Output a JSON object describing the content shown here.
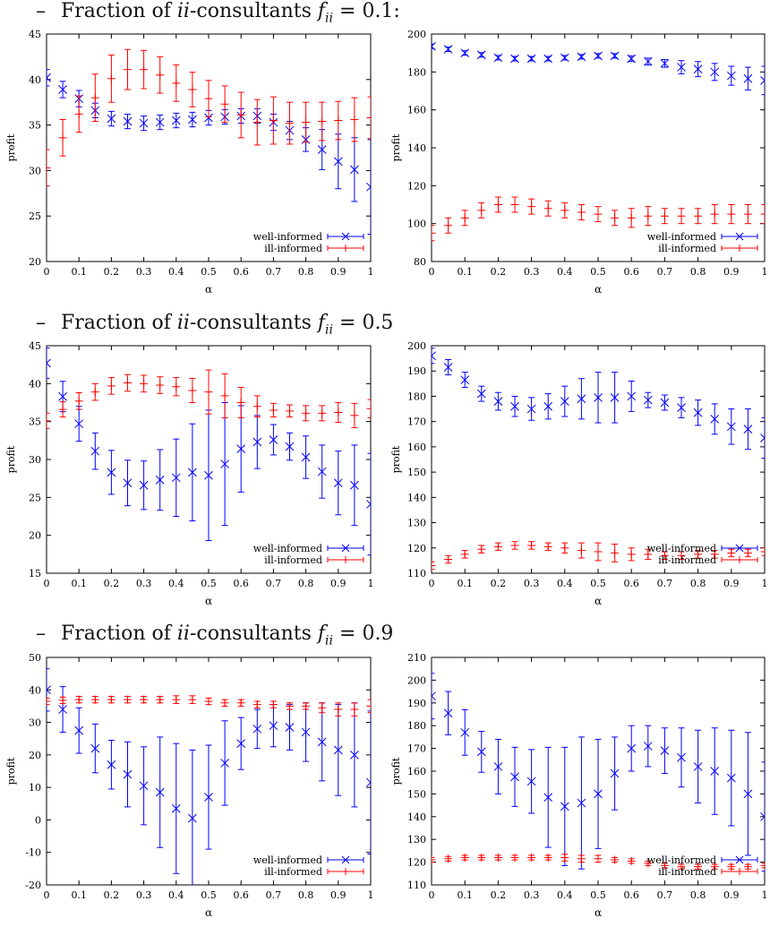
{
  "headings": [
    {
      "dash": "–",
      "prefix": "Fraction of",
      "sym": "ii",
      "mid": "-consultants",
      "f": "f",
      "sub": "ii",
      "eq": "= 0.1:"
    },
    {
      "dash": "–",
      "prefix": "Fraction of",
      "sym": "ii",
      "mid": "-consultants",
      "f": "f",
      "sub": "ii",
      "eq": "= 0.5"
    },
    {
      "dash": "–",
      "prefix": "Fraction of",
      "sym": "ii",
      "mid": "-consultants",
      "f": "f",
      "sub": "ii",
      "eq": "= 0.9"
    }
  ],
  "colors": {
    "well": "#0000ff",
    "ill": "#ff0000"
  },
  "chart_data": [
    {
      "type": "scatter",
      "error_bars": true,
      "xlabel": "α",
      "ylabel": "profit",
      "xlim": [
        0,
        1
      ],
      "ylim": [
        20,
        45
      ],
      "xticks": [
        "0",
        "0.1",
        "0.2",
        "0.3",
        "0.4",
        "0.5",
        "0.6",
        "0.7",
        "0.8",
        "0.9",
        "1"
      ],
      "yticks": [
        "20",
        "25",
        "30",
        "35",
        "40",
        "45"
      ],
      "legend_position": "bottom-right",
      "x": [
        0,
        0.05,
        0.1,
        0.15,
        0.2,
        0.25,
        0.3,
        0.35,
        0.4,
        0.45,
        0.5,
        0.55,
        0.6,
        0.65,
        0.7,
        0.75,
        0.8,
        0.85,
        0.9,
        0.95,
        1
      ],
      "series": [
        {
          "name": "well-informed",
          "marker": "x",
          "values": [
            40.2,
            38.9,
            37.9,
            36.6,
            35.7,
            35.4,
            35.2,
            35.3,
            35.5,
            35.6,
            35.8,
            35.9,
            36.0,
            36.0,
            35.3,
            34.4,
            33.4,
            32.3,
            31.0,
            30.1,
            28.2
          ],
          "errors": [
            0.9,
            0.9,
            0.9,
            0.8,
            0.8,
            0.8,
            0.8,
            0.8,
            0.8,
            0.8,
            0.8,
            0.8,
            0.8,
            0.8,
            0.9,
            1.0,
            1.3,
            2.2,
            3.0,
            3.5,
            5.2
          ]
        },
        {
          "name": "ill-informed",
          "marker": "+",
          "values": [
            30.3,
            33.6,
            36.2,
            38.0,
            40.1,
            41.1,
            41.1,
            40.5,
            39.6,
            38.9,
            37.9,
            37.3,
            36.1,
            35.3,
            35.5,
            35.2,
            35.3,
            35.4,
            35.5,
            35.6,
            35.8
          ],
          "errors": [
            2.0,
            2.0,
            2.0,
            2.6,
            2.6,
            2.2,
            2.1,
            2.0,
            2.0,
            1.9,
            2.0,
            2.0,
            2.5,
            2.5,
            2.6,
            2.3,
            2.2,
            2.1,
            2.1,
            2.4,
            2.3
          ]
        }
      ]
    },
    {
      "type": "scatter",
      "error_bars": true,
      "xlabel": "α",
      "ylabel": "profit",
      "xlim": [
        0,
        1
      ],
      "ylim": [
        80,
        200
      ],
      "xticks": [
        "0",
        "0.1",
        "0.2",
        "0.3",
        "0.4",
        "0.5",
        "0.6",
        "0.7",
        "0.8",
        "0.9",
        "1"
      ],
      "yticks": [
        "80",
        "100",
        "120",
        "140",
        "160",
        "180",
        "200"
      ],
      "legend_position": "bottom-right",
      "x": [
        0,
        0.05,
        0.1,
        0.15,
        0.2,
        0.25,
        0.3,
        0.35,
        0.4,
        0.45,
        0.5,
        0.55,
        0.6,
        0.65,
        0.7,
        0.75,
        0.8,
        0.85,
        0.9,
        0.95,
        1
      ],
      "series": [
        {
          "name": "well-informed",
          "marker": "x",
          "values": [
            193.5,
            192,
            190,
            189,
            187.5,
            187,
            187,
            187,
            187.5,
            188,
            188.5,
            188.5,
            187,
            185.5,
            184.5,
            182.5,
            181.5,
            180,
            178,
            176.5,
            175.5
          ],
          "errors": [
            1.2,
            1.2,
            1.2,
            1.2,
            1.2,
            1.2,
            1.2,
            1.2,
            1.2,
            1.2,
            1.2,
            1.2,
            1.5,
            1.8,
            2.0,
            3.5,
            4.0,
            4.5,
            5.0,
            6.0,
            7.5
          ]
        },
        {
          "name": "ill-informed",
          "marker": "+",
          "values": [
            95,
            99,
            103,
            107,
            110,
            110,
            109,
            108,
            107,
            106,
            105,
            103,
            103,
            104,
            104,
            104,
            104,
            105,
            105,
            105,
            105
          ],
          "errors": [
            4,
            4,
            4,
            4,
            4,
            4,
            4,
            4,
            4,
            4,
            4,
            4,
            5,
            5,
            4,
            4,
            4,
            5,
            5,
            5,
            5
          ]
        }
      ]
    },
    {
      "type": "scatter",
      "error_bars": true,
      "xlabel": "α",
      "ylabel": "profit",
      "xlim": [
        0,
        1
      ],
      "ylim": [
        15,
        45
      ],
      "xticks": [
        "0",
        "0.1",
        "0.2",
        "0.3",
        "0.4",
        "0.5",
        "0.6",
        "0.7",
        "0.8",
        "0.9",
        "1"
      ],
      "yticks": [
        "15",
        "20",
        "25",
        "30",
        "35",
        "40",
        "45"
      ],
      "legend_position": "bottom-right",
      "x": [
        0,
        0.05,
        0.1,
        0.15,
        0.2,
        0.25,
        0.3,
        0.35,
        0.4,
        0.45,
        0.5,
        0.55,
        0.6,
        0.65,
        0.7,
        0.75,
        0.8,
        0.85,
        0.9,
        0.95,
        1
      ],
      "series": [
        {
          "name": "well-informed",
          "marker": "x",
          "values": [
            42.7,
            38.3,
            34.7,
            31.1,
            28.3,
            26.9,
            26.6,
            27.3,
            27.6,
            28.3,
            27.9,
            29.4,
            31.4,
            32.3,
            32.6,
            31.7,
            30.3,
            28.4,
            26.9,
            26.6,
            24.1
          ],
          "errors": [
            2.0,
            2.0,
            2.3,
            2.4,
            2.9,
            3.0,
            3.2,
            4.0,
            5.1,
            6.4,
            8.6,
            8.1,
            5.7,
            3.5,
            2.0,
            1.8,
            2.8,
            3.5,
            4.2,
            5.3,
            6.7
          ]
        },
        {
          "name": "ill-informed",
          "marker": "+",
          "values": [
            35.1,
            36.6,
            37.7,
            38.9,
            39.7,
            40.1,
            40.0,
            39.8,
            39.6,
            39.1,
            38.9,
            38.4,
            37.5,
            37.0,
            36.5,
            36.4,
            36.1,
            36.1,
            36.2,
            35.8,
            36.7
          ],
          "errors": [
            1.0,
            1.0,
            1.1,
            1.1,
            1.1,
            1.1,
            1.1,
            1.1,
            1.2,
            1.6,
            2.9,
            2.9,
            2.0,
            1.4,
            0.9,
            0.8,
            1.0,
            1.0,
            1.3,
            1.6,
            1.2
          ]
        }
      ]
    },
    {
      "type": "scatter",
      "error_bars": true,
      "xlabel": "α",
      "ylabel": "profit",
      "xlim": [
        0,
        1
      ],
      "ylim": [
        110,
        200
      ],
      "xticks": [
        "0",
        "0.1",
        "0.2",
        "0.3",
        "0.4",
        "0.5",
        "0.6",
        "0.7",
        "0.8",
        "0.9",
        "1"
      ],
      "yticks": [
        "110",
        "120",
        "130",
        "140",
        "150",
        "160",
        "170",
        "180",
        "190",
        "200"
      ],
      "legend_position": "bottom-right",
      "x": [
        0,
        0.05,
        0.1,
        0.15,
        0.2,
        0.25,
        0.3,
        0.35,
        0.4,
        0.45,
        0.5,
        0.55,
        0.6,
        0.65,
        0.7,
        0.75,
        0.8,
        0.85,
        0.9,
        0.95,
        1
      ],
      "series": [
        {
          "name": "well-informed",
          "marker": "x",
          "values": [
            196,
            191.5,
            186.5,
            181,
            178,
            176,
            175,
            176,
            178,
            179,
            179.5,
            179.5,
            180,
            178.5,
            177.5,
            175.5,
            173.5,
            171,
            168,
            167,
            163.5
          ],
          "errors": [
            3,
            3,
            3,
            3,
            3.5,
            4,
            4.5,
            5,
            6,
            8,
            10,
            10,
            6,
            3,
            3,
            4,
            5,
            6,
            7,
            8,
            8
          ]
        },
        {
          "name": "ill-informed",
          "marker": "+",
          "values": [
            113,
            115.5,
            117.5,
            119.5,
            120.5,
            121,
            121,
            120.5,
            120,
            119,
            118.5,
            118,
            117.5,
            117.5,
            117,
            117,
            117.5,
            117.5,
            118,
            118,
            118.5
          ],
          "errors": [
            1.5,
            1.5,
            1.5,
            1.5,
            1.5,
            1.5,
            1.5,
            1.5,
            2,
            3,
            3.5,
            3.5,
            2.5,
            2,
            1.5,
            1.5,
            1.5,
            1.5,
            1.5,
            1.5,
            1.5
          ]
        }
      ]
    },
    {
      "type": "scatter",
      "error_bars": true,
      "xlabel": "α",
      "ylabel": "profit",
      "xlim": [
        0,
        1
      ],
      "ylim": [
        -20,
        50
      ],
      "xticks": [
        "0",
        "0.1",
        "0.2",
        "0.3",
        "0.4",
        "0.5",
        "0.6",
        "0.7",
        "0.8",
        "0.9",
        "1"
      ],
      "yticks": [
        "-20",
        "-10",
        "0",
        "10",
        "20",
        "30",
        "40",
        "50"
      ],
      "legend_position": "bottom-right",
      "x": [
        0,
        0.05,
        0.1,
        0.15,
        0.2,
        0.25,
        0.3,
        0.35,
        0.4,
        0.45,
        0.5,
        0.55,
        0.6,
        0.65,
        0.7,
        0.75,
        0.8,
        0.85,
        0.9,
        0.95,
        1
      ],
      "series": [
        {
          "name": "well-informed",
          "marker": "x",
          "values": [
            40,
            34,
            27.5,
            22,
            17,
            14,
            10.5,
            8.5,
            3.5,
            0.5,
            7,
            17.5,
            23.5,
            28,
            29,
            28.5,
            27,
            24,
            21.5,
            20,
            11.5
          ],
          "errors": [
            6.5,
            7,
            7,
            7.5,
            7.5,
            10,
            12,
            17,
            20,
            21,
            16,
            13,
            8,
            6,
            6.5,
            7,
            9,
            12,
            14,
            16,
            22
          ]
        },
        {
          "name": "ill-informed",
          "marker": "+",
          "values": [
            36.5,
            36.8,
            37,
            37,
            37,
            37,
            37,
            37,
            37,
            37,
            36.5,
            36,
            36,
            35.5,
            35.5,
            35,
            35,
            34.5,
            34,
            34,
            35
          ],
          "errors": [
            1,
            1,
            1,
            1,
            1,
            1,
            1,
            1,
            1.2,
            1.2,
            1,
            1,
            1,
            1,
            1,
            1,
            1,
            1.5,
            2,
            2,
            2
          ]
        }
      ]
    },
    {
      "type": "scatter",
      "error_bars": true,
      "xlabel": "α",
      "ylabel": "profit",
      "xlim": [
        0,
        1
      ],
      "ylim": [
        110,
        210
      ],
      "xticks": [
        "0",
        "0.1",
        "0.2",
        "0.3",
        "0.4",
        "0.5",
        "0.6",
        "0.7",
        "0.8",
        "0.9",
        "1"
      ],
      "yticks": [
        "110",
        "120",
        "130",
        "140",
        "150",
        "160",
        "170",
        "180",
        "190",
        "200",
        "210"
      ],
      "legend_position": "bottom-right",
      "x": [
        0,
        0.05,
        0.1,
        0.15,
        0.2,
        0.25,
        0.3,
        0.35,
        0.4,
        0.45,
        0.5,
        0.55,
        0.6,
        0.65,
        0.7,
        0.75,
        0.8,
        0.85,
        0.9,
        0.95,
        1
      ],
      "series": [
        {
          "name": "well-informed",
          "marker": "x",
          "values": [
            193,
            185.5,
            177,
            168.5,
            162,
            157.5,
            155.5,
            148.5,
            144.5,
            146,
            150,
            159,
            170,
            171,
            169,
            166,
            162,
            160,
            157,
            150,
            140
          ],
          "errors": [
            10,
            9.5,
            10,
            9,
            12,
            13,
            14,
            22,
            26,
            29,
            24,
            16,
            10,
            9,
            10,
            13,
            16,
            19,
            21,
            27,
            24
          ]
        },
        {
          "name": "ill-informed",
          "marker": "+",
          "values": [
            121,
            121.5,
            122,
            122,
            122,
            122,
            122,
            122,
            122,
            121.5,
            121.5,
            121,
            120.5,
            119.5,
            118.5,
            118,
            118,
            118,
            118,
            118,
            118.5
          ],
          "errors": [
            1,
            1,
            1,
            1,
            1,
            1,
            1,
            1,
            1.5,
            1.5,
            1.5,
            1,
            1,
            1,
            1,
            1,
            1,
            1,
            1,
            1,
            1
          ]
        }
      ]
    }
  ]
}
